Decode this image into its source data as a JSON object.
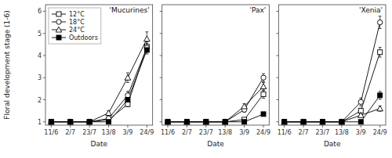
{
  "chart_data": [
    {
      "type": "line",
      "title": "'Mucurines'",
      "x_label": "Date",
      "y_label": "Floral development stage (1-6)",
      "categories": [
        "11/6",
        "2/7",
        "23/7",
        "13/8",
        "3/9",
        "24/9"
      ],
      "ylim": [
        0.85,
        6.3
      ],
      "yticks": [
        1,
        2,
        3,
        4,
        5,
        6
      ],
      "grid": false,
      "legend": "upper left",
      "series": [
        {
          "name": "12°C",
          "color": "#000000",
          "marker": "square-open",
          "values": [
            1.0,
            1.0,
            1.0,
            1.1,
            1.8,
            4.4
          ],
          "errors": [
            0.0,
            0.0,
            0.0,
            0.05,
            0.12,
            0.22
          ]
        },
        {
          "name": "18°C",
          "color": "#000000",
          "marker": "circle-open",
          "values": [
            1.0,
            1.0,
            1.0,
            1.15,
            2.2,
            4.35
          ],
          "errors": [
            0.0,
            0.0,
            0.0,
            0.05,
            0.18,
            0.18
          ]
        },
        {
          "name": "24°C",
          "color": "#000000",
          "marker": "triangle-open",
          "values": [
            1.0,
            1.0,
            1.0,
            1.4,
            3.0,
            4.75
          ],
          "errors": [
            0.0,
            0.0,
            0.0,
            0.1,
            0.22,
            0.32
          ]
        },
        {
          "name": "Outdoors",
          "color": "#000000",
          "marker": "square-filled",
          "values": [
            1.0,
            1.0,
            1.0,
            1.0,
            2.0,
            4.25
          ],
          "errors": [
            0.0,
            0.0,
            0.0,
            0.0,
            0.18,
            0.18
          ]
        }
      ]
    },
    {
      "type": "line",
      "title": "'Pax'",
      "x_label": "Date",
      "categories": [
        "11/6",
        "2/7",
        "23/7",
        "13/8",
        "3/9",
        "24/9"
      ],
      "ylim": [
        0.85,
        6.3
      ],
      "yticks": [
        1,
        2,
        3,
        4,
        5,
        6
      ],
      "grid": false,
      "tick_labels": "x",
      "series": [
        {
          "color": "#000000",
          "marker": "square-open",
          "values": [
            1.0,
            1.0,
            1.0,
            1.0,
            1.1,
            2.25
          ],
          "errors": [
            0.0,
            0.0,
            0.0,
            0.0,
            0.08,
            0.18
          ]
        },
        {
          "color": "#000000",
          "marker": "circle-open",
          "values": [
            1.0,
            1.0,
            1.0,
            1.0,
            1.55,
            3.0
          ],
          "errors": [
            0.0,
            0.0,
            0.0,
            0.0,
            0.12,
            0.18
          ]
        },
        {
          "color": "#000000",
          "marker": "triangle-open",
          "values": [
            1.0,
            1.0,
            1.0,
            1.0,
            1.7,
            2.6
          ],
          "errors": [
            0.0,
            0.0,
            0.0,
            0.0,
            0.12,
            0.18
          ]
        },
        {
          "color": "#000000",
          "marker": "square-filled",
          "values": [
            1.0,
            1.0,
            1.0,
            1.0,
            1.0,
            1.35
          ],
          "errors": [
            0.0,
            0.0,
            0.0,
            0.0,
            0.0,
            0.08
          ]
        }
      ]
    },
    {
      "type": "line",
      "title": "'Xenia'",
      "x_label": "Date",
      "categories": [
        "11/6",
        "2/7",
        "23/7",
        "13/8",
        "3/9",
        "24/9"
      ],
      "ylim": [
        0.85,
        6.3
      ],
      "yticks": [
        1,
        2,
        3,
        4,
        5,
        6
      ],
      "grid": false,
      "tick_labels": "x",
      "series": [
        {
          "color": "#000000",
          "marker": "square-open",
          "values": [
            1.0,
            1.0,
            1.0,
            1.0,
            1.5,
            4.15
          ],
          "errors": [
            0.0,
            0.0,
            0.0,
            0.0,
            0.12,
            0.22
          ]
        },
        {
          "color": "#000000",
          "marker": "circle-open",
          "values": [
            1.0,
            1.0,
            1.0,
            1.0,
            1.9,
            5.5
          ],
          "errors": [
            0.0,
            0.0,
            0.0,
            0.0,
            0.18,
            0.28
          ]
        },
        {
          "color": "#000000",
          "marker": "triangle-open",
          "values": [
            1.0,
            1.0,
            1.0,
            1.0,
            1.3,
            1.6
          ],
          "errors": [
            0.0,
            0.0,
            0.0,
            0.0,
            0.08,
            0.12
          ]
        },
        {
          "color": "#000000",
          "marker": "square-filled",
          "values": [
            1.0,
            1.0,
            1.0,
            1.0,
            1.0,
            2.2
          ],
          "errors": [
            0.0,
            0.0,
            0.0,
            0.0,
            0.0,
            0.18
          ]
        }
      ]
    }
  ]
}
